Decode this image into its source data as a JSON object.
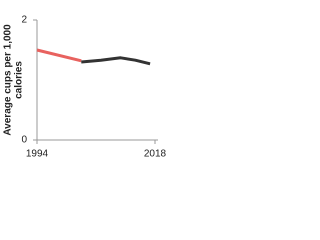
{
  "chart_data": {
    "type": "line",
    "ylabel": [
      "Average cups per 1,000",
      "calories"
    ],
    "xlim": [
      1994,
      2018
    ],
    "xticks": [
      1994,
      2018
    ],
    "ylim": [
      0,
      2
    ],
    "yticks": [
      0,
      2
    ],
    "series": [
      {
        "color": "#e8625f",
        "x": [
          1994,
          2003
        ],
        "values": [
          1.5,
          1.32
        ]
      },
      {
        "color": "#333333",
        "x": [
          2003,
          2007,
          2011,
          2014,
          2017
        ],
        "values": [
          1.3,
          1.33,
          1.37,
          1.33,
          1.27
        ]
      }
    ]
  }
}
